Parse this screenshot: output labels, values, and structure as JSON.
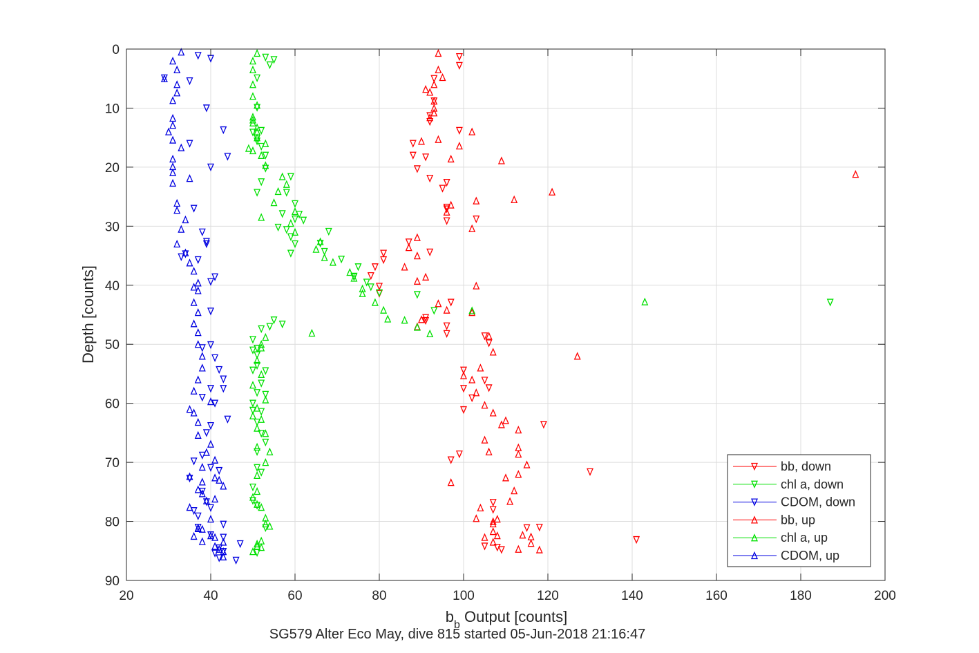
{
  "chart_data": {
    "type": "scatter",
    "title": "",
    "subtitle": "SG579 Alter Eco May, dive 815 started 05-Jun-2018 21:16:47",
    "xlabel_prefix": "b",
    "xlabel_subscript": "b",
    "xlabel_suffix": " Output [counts]",
    "ylabel": "Depth [counts]",
    "xlim": [
      20,
      200
    ],
    "ylim": [
      0,
      90
    ],
    "y_reversed": true,
    "xticks": [
      20,
      40,
      60,
      80,
      100,
      120,
      140,
      160,
      180,
      200
    ],
    "yticks": [
      0,
      10,
      20,
      30,
      40,
      50,
      60,
      70,
      80,
      90
    ],
    "xtick_labels": [
      "20",
      "40",
      "60",
      "80",
      "100",
      "120",
      "140",
      "160",
      "180",
      "200"
    ],
    "ytick_labels": [
      "0",
      "10",
      "20",
      "30",
      "40",
      "50",
      "60",
      "70",
      "80",
      "90"
    ],
    "grid": true,
    "legend_position": "bottom-right",
    "series": [
      {
        "name": "bb, down",
        "color": "#ff0000",
        "marker": "triangle-down",
        "x": [
          99,
          99,
          93,
          93,
          92,
          92,
          99,
          88,
          88,
          91,
          89,
          92,
          96,
          95,
          96,
          96,
          103,
          96,
          87,
          92,
          81,
          81,
          79,
          78,
          80,
          80,
          97,
          91,
          91,
          96,
          96,
          105,
          106,
          100,
          105,
          106,
          100,
          102,
          100,
          99,
          119,
          97,
          130,
          107,
          107,
          118,
          115,
          105,
          108,
          109,
          141
        ],
        "y": [
          1.3,
          2.8,
          5,
          8.8,
          11.3,
          12.3,
          13.8,
          16,
          18,
          18.3,
          20.3,
          21.9,
          22.6,
          23.6,
          26.8,
          27.1,
          28.8,
          29.1,
          32.7,
          34.4,
          34.6,
          35.7,
          36.9,
          38.4,
          40.2,
          41.4,
          42.9,
          45.5,
          46,
          46.9,
          48.2,
          48.6,
          49.8,
          54.4,
          56.1,
          57.4,
          57.5,
          59.1,
          61.1,
          68.6,
          63.6,
          69.6,
          71.6,
          76.8,
          78,
          81,
          81.1,
          84.2,
          84.4,
          84.8,
          83.1
        ]
      },
      {
        "name": "chl a, down",
        "color": "#00e000",
        "marker": "triangle-down",
        "x": [
          53,
          55,
          54,
          51,
          51,
          52,
          50,
          51,
          51,
          52,
          53,
          53,
          52,
          51,
          58,
          59,
          60,
          57,
          61,
          62,
          60,
          56,
          58,
          59,
          60,
          59,
          68,
          66,
          67,
          71,
          75,
          74,
          74,
          77,
          78,
          80,
          89,
          93,
          187,
          55,
          57,
          54,
          52,
          50,
          51,
          50,
          51,
          51,
          53,
          50,
          52,
          51,
          50,
          53,
          50,
          52,
          51,
          52,
          53,
          51,
          52,
          51,
          50,
          50,
          51,
          53,
          51
        ],
        "y": [
          1.4,
          1.8,
          2.7,
          4.9,
          9.9,
          13.8,
          14.1,
          15.1,
          15.6,
          16.5,
          18,
          20.2,
          22.5,
          24.3,
          24.3,
          21.6,
          26.2,
          27.9,
          28,
          29,
          28.8,
          30.2,
          30.6,
          31.8,
          33,
          34.6,
          30.9,
          32.9,
          34.3,
          35.6,
          36.9,
          38.5,
          38.6,
          39.5,
          40.3,
          41.3,
          41.6,
          44.3,
          42.9,
          45.9,
          46.6,
          47,
          47.4,
          49.2,
          50.7,
          51,
          51.8,
          53.6,
          54.5,
          54.4,
          56.6,
          58.2,
          60,
          58.5,
          61.2,
          61.4,
          63.2,
          65.1,
          66.6,
          68.2,
          71.7,
          70.9,
          74.2,
          76.5,
          77.3,
          81.1,
          85.3
        ]
      },
      {
        "name": "CDOM, down",
        "color": "#0000e0",
        "marker": "triangle-down",
        "x": [
          37,
          40,
          35,
          29,
          39,
          43,
          35,
          44,
          40,
          36,
          38,
          34,
          39,
          39,
          33,
          37,
          41,
          40,
          40,
          40,
          38,
          41,
          42,
          43,
          43,
          40,
          38,
          41,
          44,
          40,
          39,
          38,
          36,
          40,
          42,
          35,
          38,
          39,
          40,
          36,
          37,
          43,
          37,
          40,
          47,
          43,
          42,
          46,
          43,
          42,
          41
        ],
        "y": [
          1.1,
          1.6,
          5.4,
          4.9,
          10,
          13.7,
          16,
          18.2,
          20,
          27,
          31,
          34.7,
          33,
          32.6,
          35.2,
          35.7,
          38.6,
          39.4,
          44.4,
          50.1,
          50.6,
          52.3,
          54.3,
          55.9,
          57.5,
          57.5,
          59,
          60,
          62.7,
          63.8,
          65,
          68.8,
          69.8,
          70.9,
          71.4,
          72.7,
          74.9,
          76.7,
          77.7,
          78.2,
          79.1,
          80.5,
          81,
          82.3,
          83.8,
          85.1,
          86.2,
          86.6,
          82.7,
          84.5,
          85.4
        ]
      },
      {
        "name": "bb, up",
        "color": "#ff0000",
        "marker": "triangle-up",
        "x": [
          94,
          94,
          95,
          93,
          91,
          92,
          93,
          93,
          93,
          92,
          102,
          94,
          90,
          99,
          97,
          109,
          121,
          112,
          103,
          97,
          96,
          102,
          89,
          87,
          89,
          86,
          91,
          89,
          103,
          94,
          96,
          102,
          90,
          89,
          106,
          107,
          104,
          100,
          102,
          103,
          105,
          107,
          110,
          113,
          105,
          113,
          115,
          113,
          97,
          112,
          111,
          104,
          103,
          107,
          107,
          116,
          116,
          118,
          108,
          107,
          114,
          113,
          107,
          105,
          108,
          106,
          113,
          109,
          110,
          193,
          127
        ],
        "y": [
          0.7,
          3.5,
          4.8,
          6,
          6.8,
          7.3,
          8.8,
          10,
          10.8,
          11.6,
          14,
          15.3,
          15.6,
          16.4,
          18.6,
          18.9,
          24.2,
          25.5,
          25.7,
          26.4,
          27.6,
          30.4,
          31.9,
          33.6,
          35,
          36.9,
          38.6,
          39.3,
          40.1,
          43.1,
          44.2,
          44.6,
          45.8,
          47,
          48.6,
          51.3,
          54,
          55.3,
          56,
          58.2,
          60.3,
          61.6,
          62.9,
          64.5,
          66.2,
          67.5,
          70.4,
          72,
          73.4,
          74.8,
          76.6,
          77.7,
          79.5,
          80.4,
          81.7,
          82.6,
          83.7,
          84.8,
          79.6,
          80,
          82.3,
          84.7,
          83.5,
          82.7,
          82.4,
          68.2,
          68.6,
          63.6,
          72.6,
          21.2,
          52
        ]
      },
      {
        "name": "chl a, up",
        "color": "#00e000",
        "marker": "triangle-up",
        "x": [
          51,
          50,
          50,
          50,
          50,
          51,
          50,
          50,
          50,
          51,
          51,
          51,
          53,
          50,
          49,
          52,
          53,
          57,
          58,
          56,
          55,
          52,
          60,
          59,
          60,
          66,
          65,
          67,
          69,
          73,
          74,
          76,
          76,
          79,
          81,
          82,
          86,
          89,
          92,
          102,
          143,
          64,
          53,
          52,
          52,
          51,
          52,
          50,
          53,
          51,
          50,
          52,
          51,
          53,
          51,
          54,
          53,
          51,
          51,
          50,
          51,
          52,
          53,
          54,
          53,
          52,
          51,
          50,
          51,
          52
        ],
        "y": [
          0.7,
          2,
          3.5,
          6,
          8,
          9.5,
          11.5,
          12,
          12.5,
          13.3,
          14,
          15,
          16,
          17.2,
          16.8,
          18,
          19.7,
          21.6,
          22.9,
          24.1,
          26,
          28.5,
          27.5,
          29.5,
          31,
          32.6,
          33.9,
          35.3,
          36.1,
          37.8,
          38.8,
          40.6,
          41.4,
          42.9,
          44.2,
          45.7,
          45.9,
          47.1,
          48.2,
          44.3,
          42.8,
          48.1,
          48.8,
          50,
          50.6,
          52.7,
          55.1,
          56.9,
          59.4,
          60.8,
          62.1,
          62.7,
          64.2,
          65.1,
          67.4,
          68.2,
          70,
          72.2,
          74.9,
          75.9,
          77.1,
          77.6,
          79.4,
          80.8,
          80.4,
          83.3,
          84.2,
          85.1,
          83.8,
          84.4
        ]
      },
      {
        "name": "CDOM, up",
        "color": "#0000e0",
        "marker": "triangle-up",
        "x": [
          33,
          31,
          32,
          29,
          32,
          32,
          31,
          31,
          31,
          30,
          31,
          33,
          31,
          31,
          31,
          31,
          35,
          32,
          32,
          34,
          33,
          32,
          34,
          35,
          36,
          37,
          36,
          37,
          36,
          37,
          36,
          37,
          37,
          38,
          38,
          37,
          36,
          40,
          35,
          36,
          37,
          37,
          40,
          39,
          41,
          38,
          35,
          38,
          37,
          39,
          35,
          40,
          38,
          40,
          38,
          36,
          37,
          37,
          41,
          41,
          42,
          43,
          43,
          43,
          41,
          42,
          43,
          38,
          41
        ],
        "y": [
          0.5,
          2,
          3.5,
          5,
          6,
          7.4,
          8.7,
          11.7,
          12.9,
          14,
          15.4,
          16.7,
          18.6,
          19.9,
          20.9,
          22.7,
          21.9,
          26.1,
          27.3,
          28.9,
          30.5,
          33,
          34.5,
          36.2,
          37.6,
          39.6,
          40.3,
          40.9,
          42.9,
          44.6,
          46.5,
          48,
          50,
          52,
          54,
          56,
          57.9,
          59.7,
          61,
          61.6,
          63.2,
          65.4,
          66.9,
          68.3,
          69.6,
          70.8,
          72.4,
          73.3,
          74.6,
          76.5,
          77.6,
          79.6,
          81.3,
          82.4,
          83.4,
          82.5,
          81.1,
          81.2,
          82.7,
          84.2,
          84.7,
          83.5,
          85.1,
          86,
          72.6,
          73,
          74,
          75.3,
          76.2
        ]
      }
    ]
  }
}
